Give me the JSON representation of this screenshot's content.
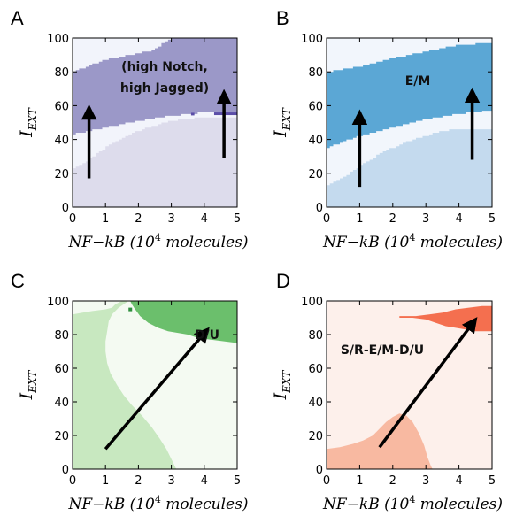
{
  "chart_data": [
    {
      "panel": "A",
      "type": "heatmap",
      "xlabel": "NF−kB (10⁴ molecules)",
      "ylabel": "I_EXT",
      "xlim": [
        0,
        5
      ],
      "ylim": [
        0,
        100
      ],
      "xticks": [
        "0",
        "1",
        "2",
        "3",
        "4",
        "5"
      ],
      "yticks": [
        "0",
        "20",
        "40",
        "60",
        "80",
        "100"
      ],
      "colors": {
        "background": "#f2f4fb",
        "region": "#9b98c8",
        "lower_region": "#dddcec",
        "edge": "#5b4ea8"
      },
      "regions": [
        {
          "label": "(high Notch,\nhigh Jagged)",
          "lower_boundary": [
            [
              0,
              43
            ],
            [
              1,
              47
            ],
            [
              2,
              51
            ],
            [
              3,
              54
            ],
            [
              3.6,
              55
            ],
            [
              4,
              56
            ],
            [
              5,
              56
            ]
          ],
          "upper_boundary": [
            [
              0,
              80
            ],
            [
              1,
              87
            ],
            [
              2,
              91
            ],
            [
              2.5,
              93
            ],
            [
              3,
              100
            ],
            [
              5,
              100
            ]
          ]
        },
        {
          "label": "",
          "upper_boundary": [
            [
              0,
              22
            ],
            [
              0.5,
              28
            ],
            [
              1,
              35
            ],
            [
              1.5,
              40
            ],
            [
              2,
              45
            ],
            [
              2.5,
              48
            ],
            [
              3,
              51
            ],
            [
              3.5,
              52
            ],
            [
              4,
              53
            ],
            [
              5,
              53
            ]
          ]
        }
      ],
      "arrows": [
        {
          "from": [
            0.5,
            17
          ],
          "to": [
            0.5,
            59
          ]
        },
        {
          "from": [
            4.6,
            29
          ],
          "to": [
            4.6,
            68
          ]
        }
      ]
    },
    {
      "panel": "B",
      "type": "heatmap",
      "xlabel": "NF−kB (10⁴ molecules)",
      "ylabel": "I_EXT",
      "xlim": [
        0,
        5
      ],
      "ylim": [
        0,
        100
      ],
      "xticks": [
        "0",
        "1",
        "2",
        "3",
        "4",
        "5"
      ],
      "yticks": [
        "0",
        "20",
        "40",
        "60",
        "80",
        "100"
      ],
      "colors": {
        "background": "#f2f6fc",
        "region": "#5ba7d5",
        "lower_region": "#c4daee"
      },
      "regions": [
        {
          "label": "E/M",
          "lower_boundary": [
            [
              0,
              35
            ],
            [
              1,
              42
            ],
            [
              2,
              47
            ],
            [
              3,
              52
            ],
            [
              4,
              55
            ],
            [
              5,
              57
            ]
          ],
          "upper_boundary": [
            [
              0,
              80
            ],
            [
              1,
              83
            ],
            [
              2,
              88
            ],
            [
              3,
              92
            ],
            [
              4,
              96
            ],
            [
              5,
              97
            ]
          ]
        },
        {
          "label": "",
          "upper_boundary": [
            [
              0,
              12
            ],
            [
              0.5,
              17
            ],
            [
              1,
              24
            ],
            [
              1.5,
              30
            ],
            [
              2,
              35
            ],
            [
              2.5,
              39
            ],
            [
              3,
              42
            ],
            [
              3.5,
              45
            ],
            [
              4,
              46
            ],
            [
              5,
              46
            ]
          ]
        }
      ],
      "arrows": [
        {
          "from": [
            1,
            12
          ],
          "to": [
            1,
            56
          ]
        },
        {
          "from": [
            4.4,
            28
          ],
          "to": [
            4.4,
            69
          ]
        }
      ]
    },
    {
      "panel": "C",
      "type": "heatmap",
      "xlabel": "NF−kB (10⁴ molecules)",
      "ylabel": "I_EXT",
      "xlim": [
        0,
        5
      ],
      "ylim": [
        0,
        100
      ],
      "xticks": [
        "0",
        "1",
        "2",
        "3",
        "4",
        "5"
      ],
      "yticks": [
        "0",
        "20",
        "40",
        "60",
        "80",
        "100"
      ],
      "colors": {
        "background": "#f4faf2",
        "region": "#6bbf6c",
        "lower_region": "#c8e8c0",
        "edge": "#2f8f3f"
      },
      "regions": [
        {
          "label": "D/U",
          "note": "top-right region"
        },
        {
          "label": "",
          "note": "light green left region"
        }
      ],
      "arrows": [
        {
          "from": [
            1,
            12
          ],
          "to": [
            4.1,
            83
          ]
        }
      ]
    },
    {
      "panel": "D",
      "type": "heatmap",
      "xlabel": "NF−kB (10⁴ molecules)",
      "ylabel": "I_EXT",
      "xlim": [
        0,
        5
      ],
      "ylim": [
        0,
        100
      ],
      "xticks": [
        "0",
        "1",
        "2",
        "3",
        "4",
        "5"
      ],
      "yticks": [
        "0",
        "20",
        "40",
        "60",
        "80",
        "100"
      ],
      "colors": {
        "background": "#fdf0eb",
        "region": "#f46f4f",
        "lower_region": "#f8b9a1"
      },
      "regions": [
        {
          "label": "S/R-E/M-D/U",
          "note": "top-right red wedge"
        },
        {
          "label": "",
          "note": "bottom salmon dome"
        }
      ],
      "arrows": [
        {
          "from": [
            1.6,
            13
          ],
          "to": [
            4.5,
            89
          ]
        }
      ]
    }
  ],
  "panels": [
    {
      "letter": "A",
      "annotation": [
        "(high Notch,",
        "high Jagged)"
      ]
    },
    {
      "letter": "B",
      "annotation": [
        "E/M"
      ]
    },
    {
      "letter": "C",
      "annotation": [
        "D/U"
      ]
    },
    {
      "letter": "D",
      "annotation": [
        "S/R-E/M-D/U"
      ]
    }
  ],
  "axis": {
    "xlabel_main": "NF−kB (10",
    "xlabel_exp": "4",
    "xlabel_tail": " molecules)",
    "ylabel_main": "I",
    "ylabel_sub": "EXT",
    "xticks": [
      "0",
      "1",
      "2",
      "3",
      "4",
      "5"
    ],
    "yticks": [
      "0",
      "20",
      "40",
      "60",
      "80",
      "100"
    ]
  }
}
